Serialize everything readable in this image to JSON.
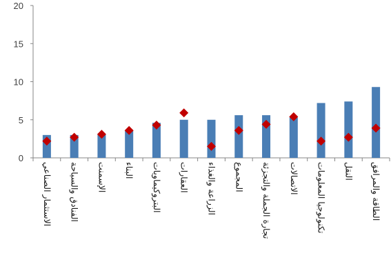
{
  "chart_data": {
    "type": "bar",
    "categories": [
      "الاستثمار الصناعي",
      "الفنادق والسياحة",
      "الإسمنت",
      "البناء",
      "البتروكيماويات",
      "العقارات",
      "الزراعة والغذاء",
      "المجموع",
      "تجارة الجملة والتجزئة",
      "الاتصالات",
      "تكنولوجيا المعلومات",
      "النقل",
      "الطاقة والمرافق"
    ],
    "series": [
      {
        "kind": "bar",
        "color": "#4a7eb5",
        "values": [
          3.0,
          3.0,
          3.1,
          3.6,
          4.6,
          5.0,
          5.0,
          5.6,
          5.6,
          5.3,
          7.2,
          7.4,
          9.3
        ]
      },
      {
        "kind": "marker",
        "marker": "diamond",
        "color": "#c00000",
        "values": [
          2.2,
          2.7,
          3.1,
          3.6,
          4.3,
          5.9,
          1.5,
          3.6,
          4.4,
          5.4,
          2.2,
          2.7,
          3.9
        ]
      }
    ],
    "yticks": [
      0,
      5,
      10,
      15,
      20
    ],
    "ylim": [
      0,
      20
    ],
    "grid": false,
    "legend": "none"
  }
}
